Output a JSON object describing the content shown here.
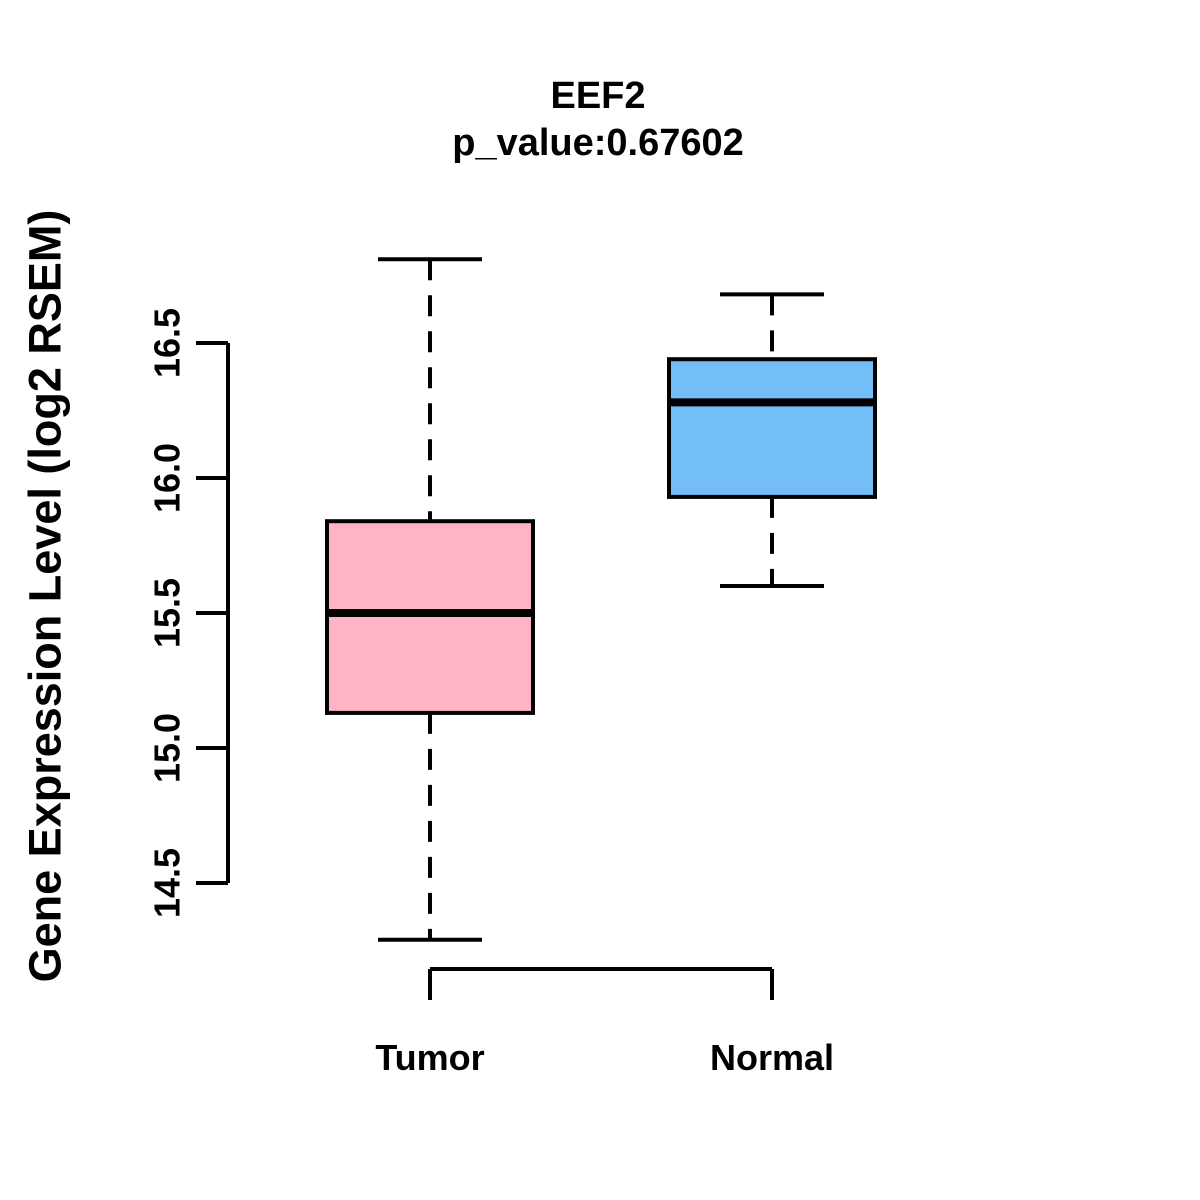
{
  "page": {
    "background": "#FFFFFF"
  },
  "chart_data": {
    "type": "boxplot",
    "title": "EEF2",
    "subtitle": "p_value:0.67602",
    "ylabel": "Gene Expression Level (log2 RSEM)",
    "xlabel": "",
    "categories": [
      "Tumor",
      "Normal"
    ],
    "y_ticks": [
      14.5,
      15.0,
      15.5,
      16.0,
      16.5
    ],
    "y_tick_labels": [
      "14.5",
      "15.0",
      "15.5",
      "16.0",
      "16.5"
    ],
    "ylim": [
      14.2,
      16.9
    ],
    "grid": false,
    "legend": "none",
    "series": [
      {
        "name": "Tumor",
        "color": "#FFB3C5",
        "whisker_low": 14.29,
        "q1": 15.13,
        "median": 15.5,
        "q3": 15.84,
        "whisker_high": 16.81
      },
      {
        "name": "Normal",
        "color": "#74BEF8",
        "whisker_low": 15.6,
        "q1": 15.93,
        "median": 16.28,
        "q3": 16.44,
        "whisker_high": 16.68
      }
    ],
    "colors": {
      "box_border": "#000000",
      "median_line": "#000000",
      "axis": "#000000"
    }
  }
}
